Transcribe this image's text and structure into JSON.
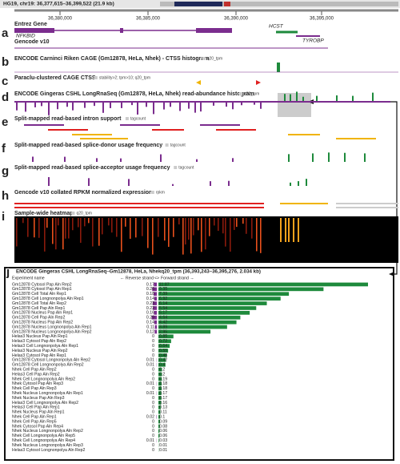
{
  "header": {
    "title": "HG19, chr19: 36,377,615–36,399,522 (21.9 kb)"
  },
  "ruler": {
    "positions": [
      "36,380,000",
      "36,385,000",
      "36,390,000",
      "36,395,000"
    ]
  },
  "genes": {
    "nfkbid": "NFKBID",
    "hcst": "HCST",
    "tyrobp": "TYROBP"
  },
  "tracks": [
    {
      "letter": "a",
      "label": "Entrez Gene",
      "label2": "Gencode v10"
    },
    {
      "letter": "b",
      "label": "ENCODE Carninci Riken CAGE (Gm12878, HeLa, Nhek) - CTSS histogram",
      "unit": "q20_tpm"
    },
    {
      "letter": "c",
      "label": "Paraclu-clustered CAGE CTSS",
      "unit": "stability>2; tpm>10; q20_tpm"
    },
    {
      "letter": "d",
      "label": "ENCODE Gingeras CSHL LongRnaSeq (Gm12878, HeLa, Nhek) read-abundance histogram",
      "unit": "q20_tpm"
    },
    {
      "letter": "e",
      "label": "Split-mapped read-based intron support",
      "unit": "tagcount"
    },
    {
      "letter": "f",
      "label": "Split-mapped read-based splice-donor usage frequency",
      "unit": "tagcount"
    },
    {
      "letter": "g",
      "label": "Split-mapped read-based splice-acceptor usage frequency",
      "unit": "tagcount"
    },
    {
      "letter": "h",
      "label": "Gencode v10 collated RPKM normalized expression",
      "unit": "rpkm"
    },
    {
      "letter": "i",
      "label": "Sample-wide heatmap",
      "unit": "q20_tpm"
    }
  ],
  "chart_data": {
    "type": "bar",
    "letter": "j",
    "title": "ENCODE Gingeras CSHL LongRnaSeq–Gm12878, HeLa, Nhekq20_tpm (36,393,243–36,395,276, 2.034 kb)",
    "column_header": "Experiment name",
    "separator": "<>",
    "categories": [
      "Gm12878 Cytosol Pap Aln Rep2",
      "Gm12878 Cytosol Pap Aln Rep1",
      "Gm12878 Cell Total Aln Rep1",
      "Gm12878 Cell Longnonpolya Aln Rep1",
      "Gm12878 Cell Total Aln Rep2",
      "Gm12878 Cell Pap Aln Rep1",
      "Gm12878 Nucleus Pap Aln Rep1",
      "Gm12878 Cell Pap Aln Rep2",
      "Gm12878 Nucleus Pap Aln Rep2",
      "Gm12878 Nucleus Longnonpolya Aln Rep1",
      "Gm12878 Nucleus Longnonpolya Aln Rep2",
      "Helas3 Nucleus Pap Aln Rep1",
      "Helas3 Cytosol Pap Aln Rep2",
      "Helas3 Cell Longnonpolya Aln Rep1",
      "Helas3 Nucleus Pap Aln Rep2",
      "Helas3 Cytosol Pap Aln Rep1",
      "Gm12878 Cytosol Longnonpolya Aln Rep2",
      "Gm12878 Cell Longnonpolya Aln Rep2",
      "Nhek Cell Pap Aln Rep2",
      "Helas3 Cell Pap Aln Rep2",
      "Nhek Cell Longnonpolya Aln Rep2",
      "Nhek Cytosol Pap Aln Rep3",
      "Nhek Cell Pap Aln Rep3",
      "Nhek Nucleus Longnonpolya Aln Rep1",
      "Nhek Nucleus Pap Aln Rep3",
      "Helas3 Cell Longnonpolya Aln Rep2",
      "Helas3 Cell Pap Aln Rep1",
      "Nhek Nucleus Pap Aln Rep1",
      "Nhek Cell Pap Aln Rep1",
      "Nhek Cell Pap Aln Rep5",
      "Nhek Cytosol Pap Aln Rep4",
      "Nhek Nucleus Longnonpolya Aln Rep2",
      "Nhek Cell Longnonpolya Aln Rep5",
      "Nhek Cell Longnonpolya Aln Rep4",
      "Nhek Nucleus Longnonpolya Aln Rep3",
      "Helas3 Cytosol Longnonpolya Aln Rep2"
    ],
    "series": [
      {
        "name": "← Reverse strand",
        "color": "#7b2d8e",
        "values": [
          0.17,
          0.26,
          0.18,
          0.14,
          0.23,
          0.22,
          0.16,
          0.29,
          0.14,
          0.11,
          0.12,
          0,
          0,
          0,
          0,
          0,
          0.01,
          0.01,
          0,
          0,
          0,
          0.01,
          0,
          0.01,
          0,
          0,
          0,
          0,
          0.02,
          0,
          0,
          0,
          0,
          0.01,
          0,
          0
        ]
      },
      {
        "name": "Forward strand →",
        "color": "#1e8a3c",
        "values": [
          11.87,
          9.35,
          7.39,
          6.92,
          6.14,
          5.54,
          5.17,
          4.64,
          4.42,
          3.89,
          2.95,
          0.85,
          0.72,
          0.64,
          0.55,
          0.48,
          0.42,
          0.4,
          0.2,
          0.2,
          0.19,
          0.18,
          0.18,
          0.17,
          0.17,
          0.16,
          0.13,
          0.11,
          0.1,
          0.09,
          0.08,
          0.06,
          0.06,
          0.03,
          0.01,
          0.01
        ]
      }
    ]
  }
}
